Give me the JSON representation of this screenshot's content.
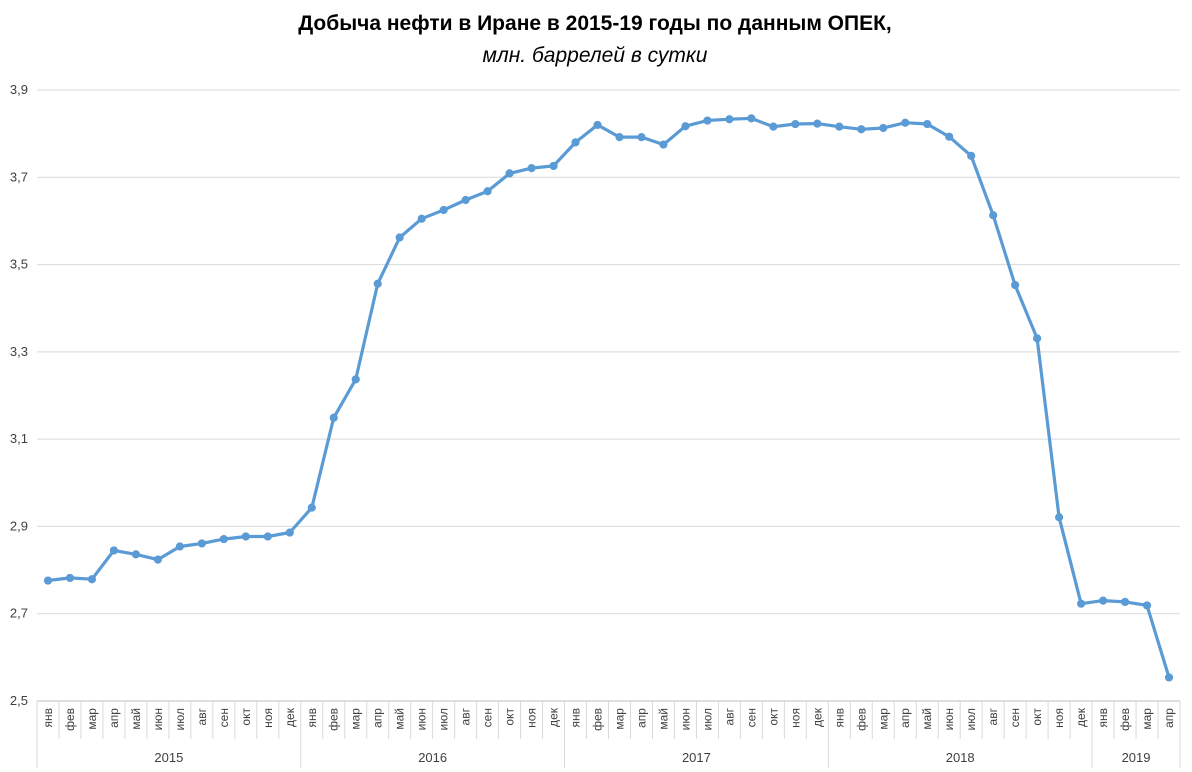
{
  "chart_data": {
    "type": "line",
    "title": "Добыча нефти в Иране в 2015-19 годы по данным ОПЕК,",
    "subtitle": "млн. баррелей в сутки",
    "xlabel": "",
    "ylabel": "",
    "ylim": [
      2.5,
      3.9
    ],
    "yticks": [
      "2,5",
      "2,7",
      "2,9",
      "3,1",
      "3,3",
      "3,5",
      "3,7",
      "3,9"
    ],
    "grid": true,
    "legend": "none",
    "line_color": "#5B9BD5",
    "categories": [
      "янв",
      "фев",
      "мар",
      "апр",
      "май",
      "июн",
      "июл",
      "авг",
      "сен",
      "окт",
      "ноя",
      "дек",
      "янв",
      "фев",
      "мар",
      "апр",
      "май",
      "июн",
      "июл",
      "авг",
      "сен",
      "окт",
      "ноя",
      "дек",
      "янв",
      "фев",
      "мар",
      "апр",
      "май",
      "июн",
      "июл",
      "авг",
      "сен",
      "окт",
      "ноя",
      "дек",
      "янв",
      "фев",
      "мар",
      "апр",
      "май",
      "июн",
      "июл",
      "авг",
      "сен",
      "окт",
      "ноя",
      "дек",
      "янв",
      "фев",
      "мар",
      "апр"
    ],
    "years": [
      {
        "label": "2015",
        "months": 12
      },
      {
        "label": "2016",
        "months": 12
      },
      {
        "label": "2017",
        "months": 12
      },
      {
        "label": "2018",
        "months": 12
      },
      {
        "label": "2019",
        "months": 4
      }
    ],
    "values": [
      2.776,
      2.782,
      2.779,
      2.845,
      2.836,
      2.824,
      2.854,
      2.861,
      2.871,
      2.877,
      2.877,
      2.886,
      2.943,
      3.149,
      3.237,
      3.456,
      3.562,
      3.605,
      3.625,
      3.648,
      3.668,
      3.709,
      3.721,
      3.726,
      3.78,
      3.82,
      3.792,
      3.792,
      3.775,
      3.817,
      3.83,
      3.833,
      3.835,
      3.816,
      3.822,
      3.823,
      3.816,
      3.81,
      3.813,
      3.825,
      3.822,
      3.793,
      3.749,
      3.613,
      3.453,
      3.331,
      2.921,
      2.723,
      2.73,
      2.727,
      2.719,
      2.554
    ]
  }
}
